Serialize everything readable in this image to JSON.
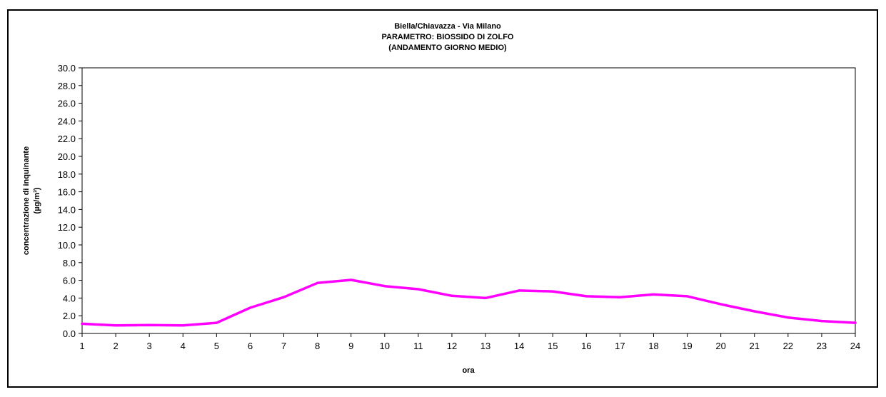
{
  "chart_data": {
    "type": "line",
    "title_lines": [
      "Biella/Chiavazza - Via Milano",
      "PARAMETRO: BIOSSIDO DI ZOLFO",
      "(ANDAMENTO GIORNO MEDIO)"
    ],
    "xlabel": "ora",
    "ylabel_lines": [
      "concentrazione di inquinante",
      "(µg/m³)"
    ],
    "x": [
      1,
      2,
      3,
      4,
      5,
      6,
      7,
      8,
      9,
      10,
      11,
      12,
      13,
      14,
      15,
      16,
      17,
      18,
      19,
      20,
      21,
      22,
      23,
      24
    ],
    "x_tick_labels": [
      "1",
      "2",
      "3",
      "4",
      "5",
      "6",
      "7",
      "8",
      "9",
      "10",
      "11",
      "12",
      "13",
      "14",
      "15",
      "16",
      "17",
      "18",
      "19",
      "20",
      "21",
      "22",
      "23",
      "24"
    ],
    "y_tick_labels": [
      "0.0",
      "2.0",
      "4.0",
      "6.0",
      "8.0",
      "10.0",
      "12.0",
      "14.0",
      "16.0",
      "18.0",
      "20.0",
      "22.0",
      "24.0",
      "26.0",
      "28.0",
      "30.0"
    ],
    "ylim": [
      0,
      30
    ],
    "y_ticks": [
      0,
      2,
      4,
      6,
      8,
      10,
      12,
      14,
      16,
      18,
      20,
      22,
      24,
      26,
      28,
      30
    ],
    "grid": false,
    "series": [
      {
        "color": "#ff00ff",
        "values": [
          1.1,
          0.9,
          0.95,
          0.9,
          1.2,
          2.9,
          4.1,
          5.7,
          6.05,
          5.35,
          5.0,
          4.25,
          4.0,
          4.85,
          4.75,
          4.2,
          4.1,
          4.4,
          4.2,
          3.3,
          2.5,
          1.8,
          1.4,
          1.2
        ]
      }
    ]
  }
}
